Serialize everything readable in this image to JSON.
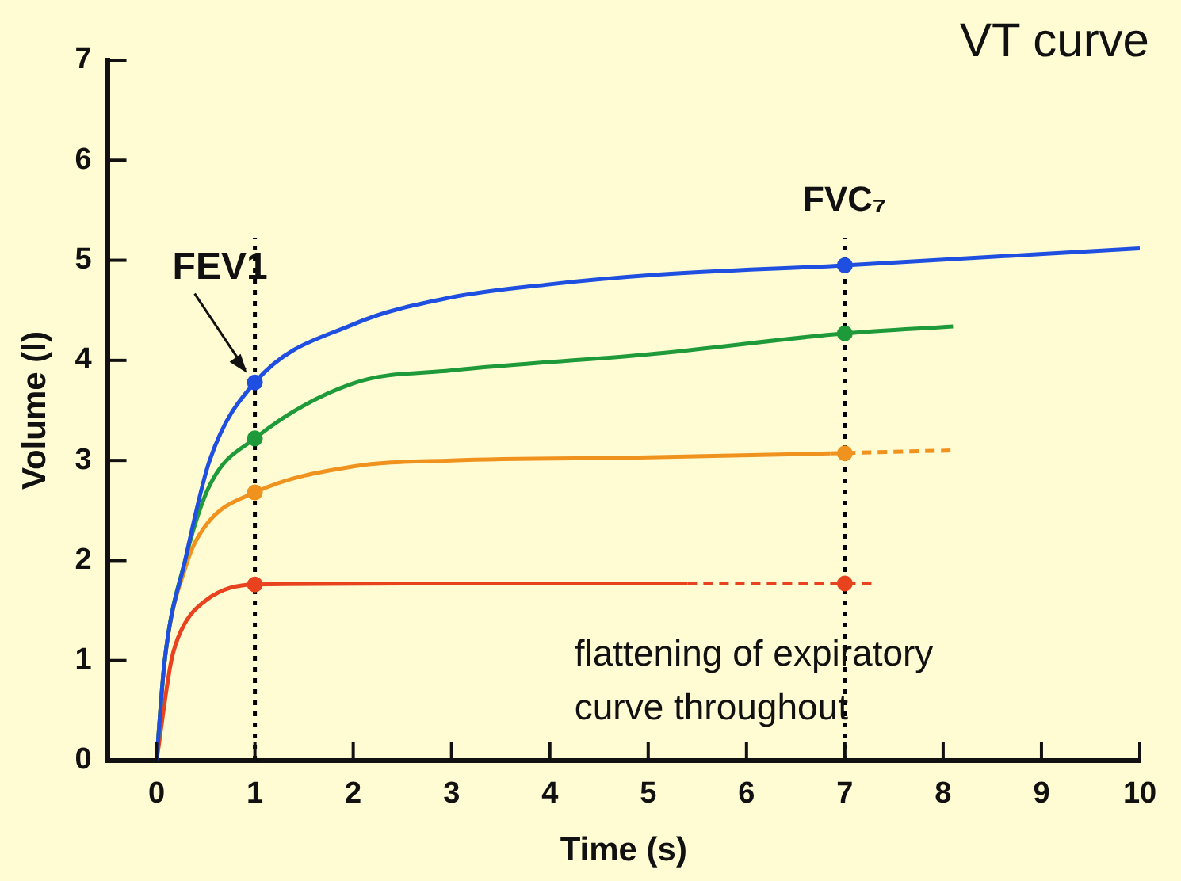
{
  "chart_data": {
    "type": "line",
    "title": "VT curve",
    "xlabel": "Time (s)",
    "ylabel": "Volume (l)",
    "xlim": [
      -0.5,
      10
    ],
    "xticks": [
      0,
      1,
      2,
      3,
      4,
      5,
      6,
      7,
      8,
      9,
      10
    ],
    "ylim": [
      0,
      7
    ],
    "yticks": [
      0,
      1,
      2,
      3,
      4,
      5,
      6,
      7
    ],
    "grid": false,
    "legend": false,
    "marker": "none",
    "series": [
      {
        "color": "#1f4fe0",
        "x": [
          0,
          0.08,
          0.29,
          0.54,
          1,
          2,
          3,
          4,
          5,
          7,
          10
        ],
        "values": [
          0,
          0.98,
          2.0,
          3.0,
          3.78,
          4.36,
          4.63,
          4.76,
          4.85,
          4.95,
          5.12
        ]
      },
      {
        "color": "#1e9a3a",
        "x": [
          0,
          0.08,
          0.29,
          0.54,
          1,
          2,
          3,
          5,
          7,
          8.1
        ],
        "values": [
          0,
          0.98,
          2.0,
          2.75,
          3.22,
          3.77,
          3.9,
          4.06,
          4.27,
          4.34
        ]
      },
      {
        "color": "#f0921e",
        "x": [
          0,
          0.08,
          0.3,
          0.5,
          1,
          2,
          3,
          5,
          6.85
        ],
        "values": [
          0,
          0.98,
          1.95,
          2.35,
          2.68,
          2.94,
          3.0,
          3.03,
          3.07
        ]
      },
      {
        "color": "#f0921e",
        "line_style": "dashed",
        "x": [
          6.85,
          8.1
        ],
        "values": [
          3.07,
          3.1
        ]
      },
      {
        "color": "#e8421e",
        "x": [
          0,
          0.15,
          0.25,
          0.5,
          1,
          3,
          5.4
        ],
        "values": [
          0,
          1.0,
          1.3,
          1.6,
          1.76,
          1.77,
          1.77
        ]
      },
      {
        "color": "#e8421e",
        "line_style": "dashed",
        "x": [
          5.4,
          7.3
        ],
        "values": [
          1.77,
          1.77
        ]
      },
      {
        "type": "scatter",
        "marker": "circle",
        "x": [
          1,
          1,
          1,
          1,
          7,
          7,
          7,
          7
        ],
        "values": [
          3.78,
          3.22,
          2.68,
          1.76,
          4.95,
          4.27,
          3.07,
          1.77
        ],
        "colors": [
          "#1f4fe0",
          "#1e9a3a",
          "#f0921e",
          "#e8421e",
          "#1f4fe0",
          "#1e9a3a",
          "#f0921e",
          "#e8421e"
        ]
      }
    ],
    "ref_lines": [
      {
        "axis": "x",
        "value": 1,
        "line_style": "dotted",
        "color": "#000000"
      },
      {
        "axis": "x",
        "value": 7,
        "label": "FVC₇",
        "line_style": "dotted",
        "color": "#000000"
      }
    ],
    "annotations": [
      {
        "text": "FEV1",
        "x": 1,
        "y": 3.78
      },
      "flattening of expiratory\ncurve throughout"
    ]
  }
}
